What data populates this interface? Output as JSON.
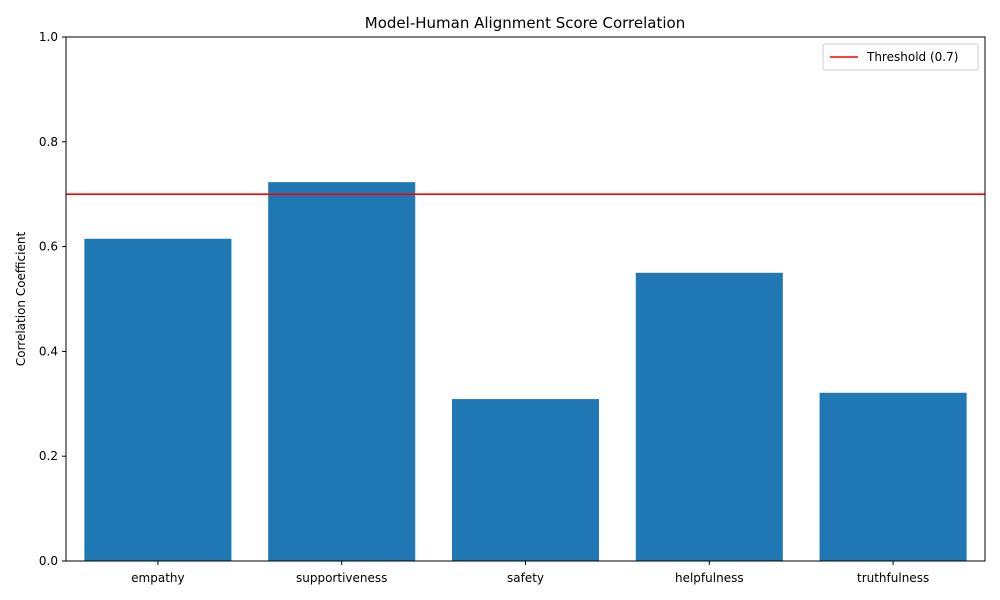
{
  "chart_data": {
    "type": "bar",
    "title": "Model-Human Alignment Score Correlation",
    "xlabel": "",
    "ylabel": "Correlation Coefficient",
    "categories": [
      "empathy",
      "supportiveness",
      "safety",
      "helpfulness",
      "truthfulness"
    ],
    "values": [
      0.615,
      0.723,
      0.309,
      0.55,
      0.321
    ],
    "ylim": [
      0,
      1.0
    ],
    "yticks": [
      "0.0",
      "0.2",
      "0.4",
      "0.6",
      "0.8",
      "1.0"
    ],
    "bar_color": "#1f77b4",
    "grid": false,
    "threshold": {
      "value": 0.7,
      "label": "Threshold (0.7)",
      "color": "#ff0000"
    },
    "legend_position": "top-right"
  }
}
